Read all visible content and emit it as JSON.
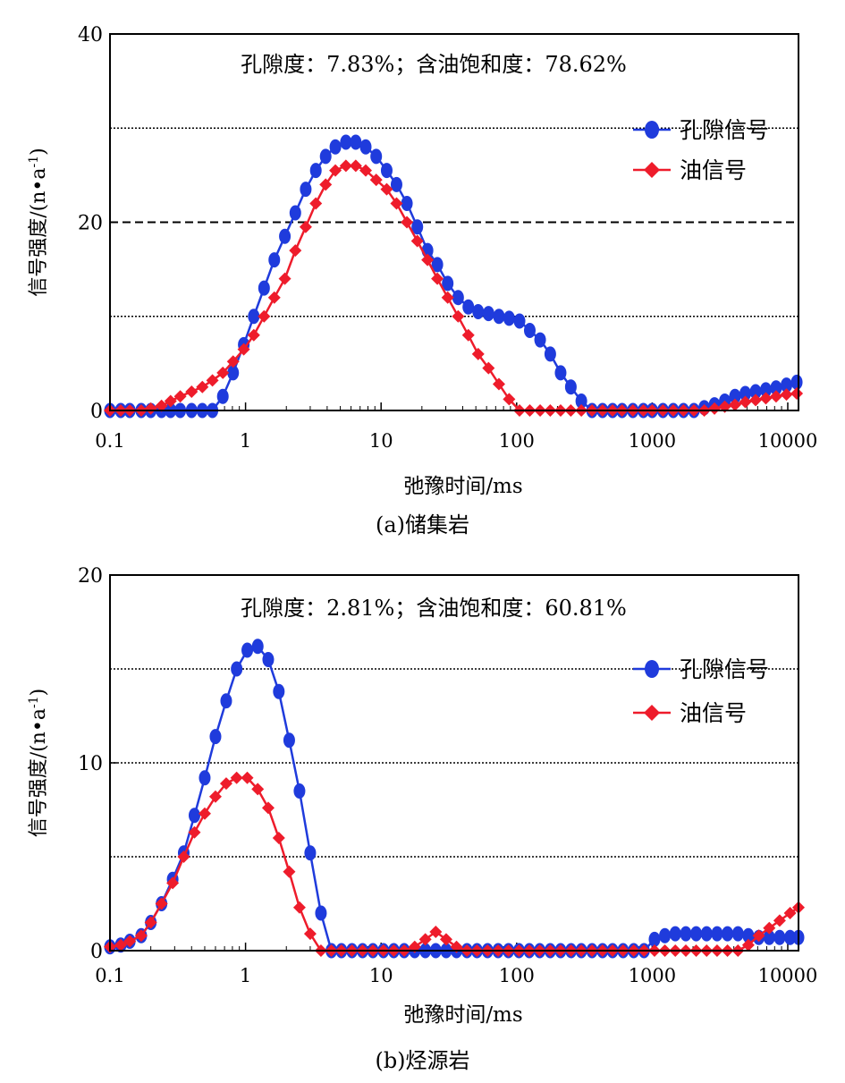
{
  "colors": {
    "porosity": "#1f3bdc",
    "oil": "#ee1c2b",
    "grid": "#000000",
    "axis": "#000000"
  },
  "icons": {
    "porosity_marker": "circle",
    "oil_marker": "diamond"
  },
  "chart_data": [
    {
      "type": "line",
      "x_scale": "log",
      "xlim": [
        0.1,
        12000
      ],
      "ylim": [
        0,
        40
      ],
      "yticks": [
        "0",
        "20",
        "40"
      ],
      "xticks": [
        "0.1",
        "1",
        "10",
        "100",
        "1000",
        "10000"
      ],
      "title": "孔隙度：7.83%；含油饱和度：78.62%",
      "xlabel": "弛豫时间/ms",
      "ylabel": "信号强度/(n•a",
      "ylabel_sup": "-1",
      "ylabel_end": ")",
      "caption": "(a)储集岩",
      "gridlines": [
        {
          "y": 10,
          "style": "dotted"
        },
        {
          "y": 20,
          "style": "dashed"
        },
        {
          "y": 30,
          "style": "dotted"
        }
      ],
      "legend_position": "top-right",
      "series": [
        {
          "name": "孔隙信号",
          "marker": "circle",
          "color_key": "porosity",
          "x": [
            0.1,
            0.12,
            0.14,
            0.17,
            0.2,
            0.24,
            0.28,
            0.33,
            0.4,
            0.48,
            0.57,
            0.68,
            0.81,
            0.97,
            1.15,
            1.37,
            1.63,
            1.95,
            2.33,
            2.78,
            3.3,
            3.9,
            4.6,
            5.5,
            6.5,
            7.7,
            9.2,
            11,
            13,
            15.5,
            18.5,
            22,
            26,
            31,
            37,
            44,
            52,
            62,
            74,
            88,
            105,
            125,
            149,
            177,
            211,
            251,
            300,
            360,
            430,
            510,
            600,
            720,
            860,
            1000,
            1200,
            1430,
            1700,
            2030,
            2420,
            2880,
            3430,
            4080,
            4860,
            5790,
            6890,
            8200,
            9780,
            11650
          ],
          "y": [
            0,
            0,
            0,
            0,
            0,
            0,
            0,
            0,
            0,
            0,
            0,
            1.5,
            4,
            7,
            10,
            13,
            16,
            18.5,
            21,
            23.5,
            25.5,
            27,
            28,
            28.5,
            28.5,
            28,
            27,
            25.5,
            24,
            22,
            19.5,
            17,
            15.5,
            13.5,
            12,
            11,
            10.5,
            10.3,
            10,
            9.8,
            9.5,
            8.5,
            7.5,
            6,
            4,
            2.5,
            1,
            0,
            0,
            0,
            0,
            0,
            0,
            0,
            0,
            0,
            0,
            0,
            0.3,
            0.6,
            1,
            1.5,
            1.8,
            2,
            2.2,
            2.4,
            2.7,
            3
          ]
        },
        {
          "name": "油信号",
          "marker": "diamond",
          "color_key": "oil",
          "x": [
            0.1,
            0.12,
            0.14,
            0.17,
            0.2,
            0.24,
            0.28,
            0.33,
            0.4,
            0.48,
            0.57,
            0.68,
            0.81,
            0.97,
            1.15,
            1.37,
            1.63,
            1.95,
            2.33,
            2.78,
            3.3,
            3.9,
            4.6,
            5.5,
            6.5,
            7.7,
            9.2,
            11,
            13,
            15.5,
            18.5,
            22,
            26,
            31,
            37,
            44,
            52,
            62,
            74,
            88,
            105,
            125,
            149,
            177,
            211,
            251,
            300,
            360,
            430,
            510,
            600,
            720,
            860,
            1000,
            1200,
            1430,
            1700,
            2030,
            2420,
            2880,
            3430,
            4080,
            4860,
            5790,
            6890,
            8200,
            9780,
            11650
          ],
          "y": [
            0,
            0,
            0,
            0,
            0.2,
            0.5,
            1,
            1.5,
            2,
            2.5,
            3.2,
            4,
            5.2,
            6.5,
            8,
            10,
            12,
            14,
            17,
            19.5,
            22,
            24,
            25.5,
            26,
            26,
            25.5,
            24.5,
            23.5,
            22,
            20,
            18,
            16,
            14,
            12,
            10,
            8,
            6,
            4.5,
            2.8,
            1.2,
            0,
            0,
            0,
            0,
            0,
            0,
            0,
            0,
            0,
            0,
            0,
            0,
            0,
            0,
            0,
            0,
            0,
            0,
            0,
            0.2,
            0.4,
            0.6,
            0.9,
            1.1,
            1.3,
            1.5,
            1.7,
            1.8
          ]
        }
      ]
    },
    {
      "type": "line",
      "x_scale": "log",
      "xlim": [
        0.1,
        12000
      ],
      "ylim": [
        0,
        20
      ],
      "yticks": [
        "0",
        "10",
        "20"
      ],
      "xticks": [
        "0.1",
        "1",
        "10",
        "100",
        "1000",
        "10000"
      ],
      "title": "孔隙度：2.81%；含油饱和度：60.81%",
      "xlabel": "弛豫时间/ms",
      "ylabel": "信号强度/(n•a",
      "ylabel_sup": "-1",
      "ylabel_end": ")",
      "caption": "(b)烃源岩",
      "gridlines": [
        {
          "y": 5,
          "style": "dotted"
        },
        {
          "y": 10,
          "style": "dotted"
        },
        {
          "y": 15,
          "style": "dotted"
        }
      ],
      "legend_position": "top-right",
      "series": [
        {
          "name": "孔隙信号",
          "marker": "circle",
          "color_key": "porosity",
          "x": [
            0.1,
            0.12,
            0.14,
            0.17,
            0.2,
            0.24,
            0.29,
            0.35,
            0.42,
            0.5,
            0.6,
            0.72,
            0.86,
            1.03,
            1.23,
            1.47,
            1.76,
            2.1,
            2.5,
            3,
            3.6,
            4.3,
            5.1,
            6.1,
            7.3,
            8.7,
            10.4,
            12.4,
            14.8,
            17.7,
            21.2,
            25.3,
            30.2,
            36,
            43,
            51,
            61,
            73,
            87,
            104,
            124,
            148,
            177,
            211,
            252,
            300,
            360,
            430,
            510,
            610,
            730,
            870,
            1040,
            1240,
            1480,
            1770,
            2110,
            2520,
            3010,
            3590,
            4290,
            5120,
            6110,
            7300,
            8710,
            10400,
            12000
          ],
          "y": [
            0.2,
            0.3,
            0.5,
            0.8,
            1.5,
            2.5,
            3.8,
            5.2,
            7.2,
            9.2,
            11.4,
            13.3,
            15,
            16,
            16.2,
            15.5,
            13.8,
            11.2,
            8.5,
            5.2,
            2,
            0,
            0,
            0,
            0,
            0,
            0,
            0,
            0,
            0,
            0,
            0,
            0,
            0,
            0,
            0,
            0,
            0,
            0,
            0,
            0,
            0,
            0,
            0,
            0,
            0,
            0,
            0,
            0,
            0,
            0,
            0,
            0.6,
            0.8,
            0.9,
            0.9,
            0.9,
            0.9,
            0.9,
            0.9,
            0.9,
            0.8,
            0.7,
            0.7,
            0.7,
            0.7,
            0.7
          ]
        },
        {
          "name": "油信号",
          "marker": "diamond",
          "color_key": "oil",
          "x": [
            0.1,
            0.12,
            0.14,
            0.17,
            0.2,
            0.24,
            0.29,
            0.35,
            0.42,
            0.5,
            0.6,
            0.72,
            0.86,
            1.03,
            1.23,
            1.47,
            1.76,
            2.1,
            2.5,
            3,
            3.6,
            4.3,
            5.1,
            6.1,
            7.3,
            8.7,
            10.4,
            12.4,
            14.8,
            17.7,
            21.2,
            25.3,
            30.2,
            36,
            43,
            51,
            61,
            73,
            87,
            104,
            124,
            148,
            177,
            211,
            252,
            300,
            360,
            430,
            510,
            610,
            730,
            870,
            1040,
            1240,
            1480,
            1770,
            2110,
            2520,
            3010,
            3590,
            4290,
            5120,
            6110,
            7300,
            8710,
            10400,
            12000
          ],
          "y": [
            0.2,
            0.3,
            0.5,
            0.8,
            1.5,
            2.5,
            3.6,
            5,
            6.3,
            7.3,
            8.2,
            8.9,
            9.2,
            9.2,
            8.6,
            7.6,
            6,
            4.2,
            2.3,
            0.9,
            0,
            0,
            0,
            0,
            0,
            0,
            0,
            0,
            0,
            0.2,
            0.6,
            1,
            0.6,
            0.2,
            0,
            0,
            0,
            0,
            0,
            0,
            0,
            0,
            0,
            0,
            0,
            0,
            0,
            0,
            0,
            0,
            0,
            0,
            0,
            0,
            0,
            0,
            0,
            0,
            0,
            0,
            0,
            0.3,
            0.8,
            1.2,
            1.6,
            2,
            2.3
          ]
        }
      ]
    }
  ]
}
